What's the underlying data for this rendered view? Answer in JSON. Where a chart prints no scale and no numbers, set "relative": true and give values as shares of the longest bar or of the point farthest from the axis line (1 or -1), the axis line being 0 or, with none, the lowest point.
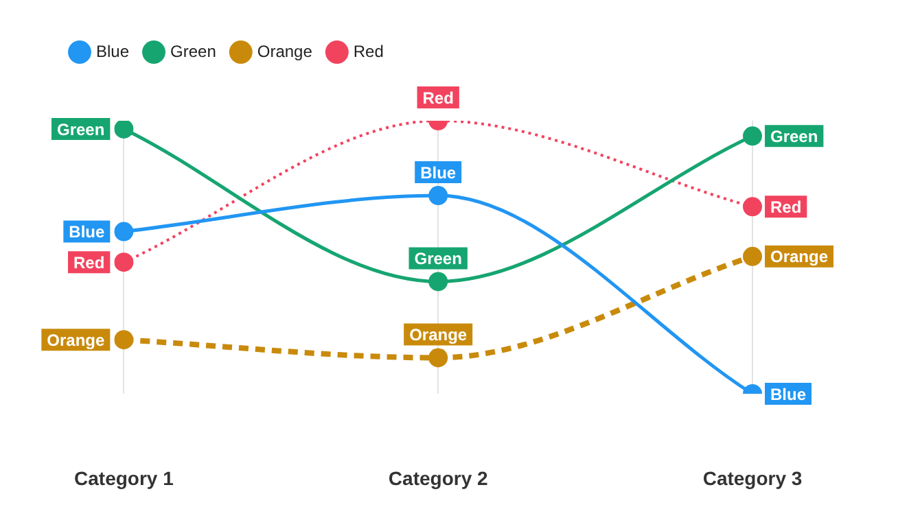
{
  "chart_data": {
    "type": "line",
    "relative": true,
    "categories": [
      "Category 1",
      "Category 2",
      "Category 3"
    ],
    "legend": "top left",
    "grid": "x",
    "marker": "circle",
    "series": [
      {
        "name": "Blue",
        "color": "#2196f3",
        "values": [
          0.594,
          0.726,
          0
        ],
        "line_style": "solid"
      },
      {
        "name": "Green",
        "color": "#16a571",
        "values": [
          0.97,
          0.411,
          0.944
        ],
        "line_style": "solid"
      },
      {
        "name": "Orange",
        "color": "#c98a0c",
        "values": [
          0.198,
          0.132,
          0.503
        ],
        "line_style": "dashed"
      },
      {
        "name": "Red",
        "color": "#f2435e",
        "values": [
          0.482,
          1,
          0.685
        ],
        "line_style": "dotted"
      }
    ]
  }
}
